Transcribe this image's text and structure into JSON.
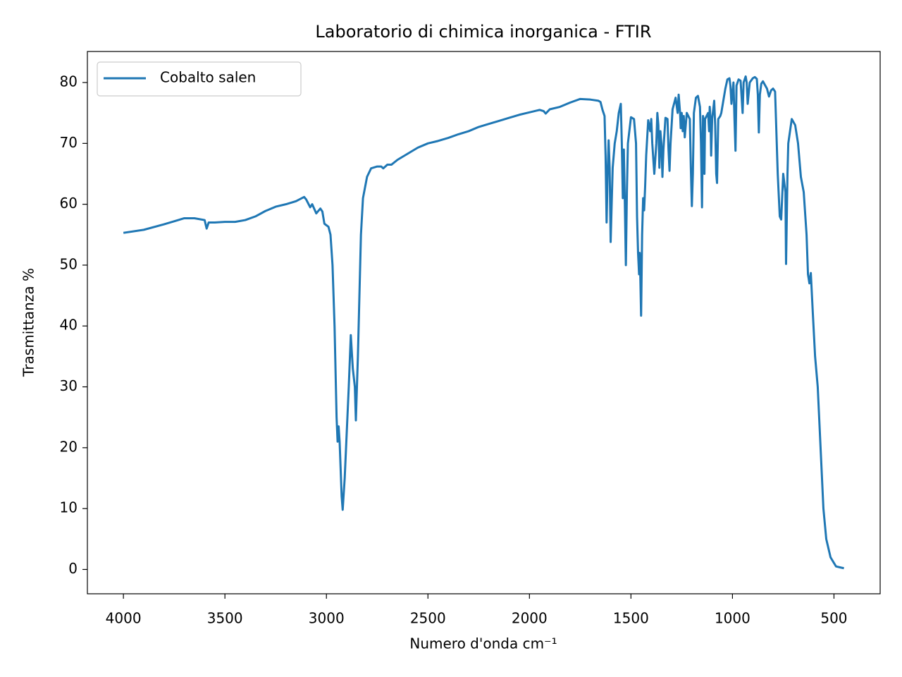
{
  "chart_data": {
    "type": "line",
    "title": "Laboratorio di chimica inorganica - FTIR",
    "xlabel": "Numero d'onda cm⁻¹",
    "ylabel": "Trasmittanza %",
    "x": [
      4000,
      3900,
      3800,
      3700,
      3650,
      3600,
      3590,
      3580,
      3550,
      3500,
      3450,
      3400,
      3350,
      3300,
      3250,
      3200,
      3150,
      3110,
      3100,
      3080,
      3070,
      3050,
      3030,
      3020,
      3010,
      2990,
      2980,
      2970,
      2960,
      2950,
      2945,
      2940,
      2935,
      2925,
      2920,
      2910,
      2890,
      2880,
      2870,
      2860,
      2855,
      2845,
      2830,
      2820,
      2800,
      2780,
      2750,
      2730,
      2720,
      2700,
      2680,
      2650,
      2600,
      2550,
      2500,
      2450,
      2400,
      2350,
      2300,
      2250,
      2200,
      2150,
      2100,
      2050,
      2000,
      1950,
      1930,
      1920,
      1900,
      1850,
      1800,
      1750,
      1700,
      1660,
      1650,
      1640,
      1630,
      1625,
      1620,
      1615,
      1610,
      1605,
      1600,
      1595,
      1590,
      1580,
      1570,
      1560,
      1550,
      1545,
      1540,
      1535,
      1530,
      1525,
      1520,
      1515,
      1500,
      1485,
      1475,
      1470,
      1465,
      1460,
      1457,
      1455,
      1450,
      1445,
      1440,
      1435,
      1430,
      1425,
      1415,
      1405,
      1400,
      1395,
      1385,
      1375,
      1370,
      1365,
      1360,
      1355,
      1350,
      1345,
      1340,
      1330,
      1320,
      1315,
      1310,
      1305,
      1295,
      1280,
      1270,
      1265,
      1258,
      1255,
      1250,
      1245,
      1240,
      1235,
      1225,
      1210,
      1205,
      1200,
      1195,
      1190,
      1180,
      1170,
      1160,
      1155,
      1150,
      1145,
      1140,
      1138,
      1135,
      1120,
      1115,
      1112,
      1108,
      1105,
      1100,
      1090,
      1085,
      1080,
      1076,
      1070,
      1060,
      1055,
      1045,
      1035,
      1025,
      1015,
      1010,
      1005,
      995,
      990,
      985,
      980,
      970,
      960,
      950,
      945,
      935,
      930,
      925,
      915,
      900,
      890,
      880,
      875,
      870,
      865,
      858,
      850,
      840,
      830,
      820,
      810,
      800,
      790,
      777,
      767,
      760,
      750,
      739,
      736,
      729,
      725,
      708,
      691,
      677,
      663,
      649,
      635,
      628,
      621,
      614,
      604,
      593,
      580,
      566,
      552,
      538,
      517,
      490,
      465,
      451
    ],
    "series": [
      {
        "name": "Cobalto salen",
        "color": "#1f77b4",
        "values": [
          55.3,
          55.8,
          56.7,
          57.7,
          57.7,
          57.4,
          56.0,
          57.0,
          57.0,
          57.1,
          57.1,
          57.4,
          58.0,
          58.9,
          59.6,
          60.0,
          60.5,
          61.2,
          60.8,
          59.5,
          60.0,
          58.5,
          59.3,
          58.8,
          56.8,
          56.3,
          55.0,
          50,
          40,
          25,
          21,
          23.5,
          21,
          12,
          9.8,
          15,
          30,
          38.5,
          33,
          30,
          24.5,
          35,
          55,
          61,
          64.5,
          65.9,
          66.2,
          66.2,
          65.9,
          66.5,
          66.5,
          67.3,
          68.3,
          69.3,
          70,
          70.4,
          70.9,
          71.5,
          72.0,
          72.7,
          73.2,
          73.7,
          74.2,
          74.7,
          75.1,
          75.5,
          75.3,
          74.9,
          75.6,
          76.0,
          76.7,
          77.3,
          77.2,
          77.0,
          76.8,
          75.5,
          74.5,
          68,
          57,
          65,
          70.5,
          66,
          53.8,
          60,
          66,
          70,
          72,
          75,
          76.5,
          70,
          61,
          69,
          60,
          50,
          62,
          70,
          74.3,
          74,
          70,
          58,
          52,
          48.5,
          52,
          50,
          41.7,
          55,
          61,
          59,
          63,
          68,
          73.8,
          72,
          74,
          70,
          65,
          70,
          75,
          73,
          66,
          72,
          70,
          64.5,
          69,
          74.2,
          74,
          69,
          65.5,
          70,
          75.6,
          77.5,
          75,
          78,
          75,
          72.5,
          75,
          72,
          74.5,
          71,
          75,
          74,
          66,
          59.7,
          65,
          75,
          77.5,
          77.8,
          76,
          70,
          59.5,
          74.5,
          73,
          65,
          74,
          75,
          72,
          76,
          74,
          68,
          74,
          77,
          73,
          65,
          63.5,
          74,
          74.5,
          75,
          77,
          79,
          80.5,
          80.7,
          79.5,
          76.5,
          80,
          74,
          68.8,
          79.5,
          80.5,
          80.3,
          75,
          80,
          81,
          80,
          76.5,
          80,
          80.7,
          80.9,
          80.6,
          78,
          71.8,
          78,
          79.8,
          80.2,
          79.6,
          79,
          77.7,
          78.7,
          79,
          78.5,
          65,
          58,
          57.5,
          65,
          62,
          50.2,
          65,
          70,
          74,
          73,
          70,
          64.5,
          62,
          55,
          48.5,
          47,
          48.7,
          42,
          35,
          30,
          20,
          10,
          5,
          2,
          0.5,
          0.3,
          0.2
        ]
      }
    ],
    "xlim": [
      4177.5,
      272.5
    ],
    "ylim": [
      -4.0,
      85.1
    ],
    "xticks": [
      4000,
      3500,
      3000,
      2500,
      2000,
      1500,
      1000,
      500
    ],
    "yticks": [
      0,
      10,
      20,
      30,
      40,
      50,
      60,
      70,
      80
    ],
    "legend": "upper left"
  }
}
